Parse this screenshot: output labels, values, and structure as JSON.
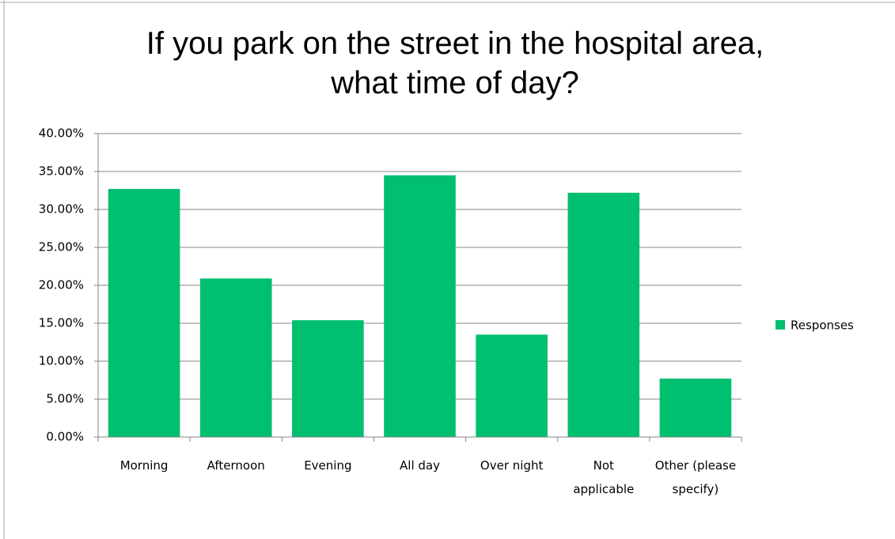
{
  "chart_data": {
    "type": "bar",
    "title": "If you park on the street in the hospital area, what time of day?",
    "categories": [
      "Morning",
      "Afternoon",
      "Evening",
      "All day",
      "Over night",
      "Not applicable",
      "Other (please specify)"
    ],
    "series": [
      {
        "name": "Responses",
        "color": "#00bf6f",
        "values": [
          32.7,
          20.9,
          15.4,
          34.5,
          13.5,
          32.2,
          7.7
        ]
      }
    ],
    "ylim": [
      0,
      40
    ],
    "yticks": [
      {
        "value": 0,
        "label": "0.00%"
      },
      {
        "value": 5,
        "label": "5.00%"
      },
      {
        "value": 10,
        "label": "10.00%"
      },
      {
        "value": 15,
        "label": "15.00%"
      },
      {
        "value": 20,
        "label": "20.00%"
      },
      {
        "value": 25,
        "label": "25.00%"
      },
      {
        "value": 30,
        "label": "30.00%"
      },
      {
        "value": 35,
        "label": "35.00%"
      },
      {
        "value": 40,
        "label": "40.00%"
      }
    ],
    "grid": true,
    "legend": "right"
  }
}
